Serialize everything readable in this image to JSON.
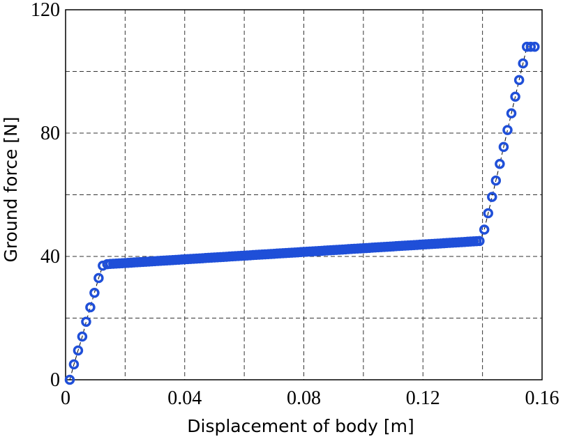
{
  "chart_data": {
    "type": "scatter",
    "title": "",
    "xlabel": "Displacement of body [m]",
    "ylabel": "Ground force [N]",
    "xlim": [
      0,
      0.16
    ],
    "ylim": [
      0,
      120
    ],
    "xticks": [
      0,
      0.04,
      0.08,
      0.12,
      0.16
    ],
    "xtick_labels": [
      "0",
      "0.04",
      "0.08",
      "0.12",
      "0.16"
    ],
    "yticks": [
      0,
      40,
      80,
      120
    ],
    "ytick_labels": [
      "0",
      "40",
      "80",
      "120"
    ],
    "grid": true,
    "marker_color": "#1f4fd8",
    "series": [
      {
        "marker": "open-circle",
        "connected": "dashed-line",
        "x": [
          0.0014,
          0.0028,
          0.0042,
          0.0056,
          0.0069,
          0.0083,
          0.0097,
          0.0111,
          0.0125,
          0.014,
          0.015,
          0.016,
          0.017,
          0.018,
          0.019,
          0.02,
          0.021,
          0.022,
          0.023,
          0.024,
          0.025,
          0.026,
          0.027,
          0.028,
          0.029,
          0.03,
          0.031,
          0.032,
          0.033,
          0.034,
          0.035,
          0.036,
          0.037,
          0.038,
          0.039,
          0.04,
          0.041,
          0.042,
          0.043,
          0.044,
          0.045,
          0.046,
          0.047,
          0.048,
          0.049,
          0.05,
          0.051,
          0.052,
          0.053,
          0.054,
          0.055,
          0.056,
          0.057,
          0.058,
          0.059,
          0.06,
          0.061,
          0.062,
          0.063,
          0.064,
          0.065,
          0.066,
          0.067,
          0.068,
          0.069,
          0.07,
          0.071,
          0.072,
          0.073,
          0.074,
          0.075,
          0.076,
          0.077,
          0.078,
          0.079,
          0.08,
          0.081,
          0.082,
          0.083,
          0.084,
          0.085,
          0.086,
          0.087,
          0.088,
          0.089,
          0.09,
          0.091,
          0.092,
          0.093,
          0.094,
          0.095,
          0.096,
          0.097,
          0.098,
          0.099,
          0.1,
          0.101,
          0.102,
          0.103,
          0.104,
          0.105,
          0.106,
          0.107,
          0.108,
          0.109,
          0.11,
          0.111,
          0.112,
          0.113,
          0.114,
          0.115,
          0.116,
          0.117,
          0.118,
          0.119,
          0.12,
          0.121,
          0.122,
          0.123,
          0.124,
          0.125,
          0.126,
          0.127,
          0.128,
          0.129,
          0.13,
          0.131,
          0.132,
          0.133,
          0.134,
          0.135,
          0.136,
          0.137,
          0.138,
          0.139,
          0.1406,
          0.1419,
          0.1432,
          0.1445,
          0.1458,
          0.1471,
          0.1484,
          0.1497,
          0.151,
          0.1523,
          0.1536,
          0.1549,
          0.1562,
          0.1575
        ],
        "y": [
          0.0,
          5.0,
          9.5,
          14.0,
          18.8,
          23.5,
          28.2,
          33.0,
          37.0,
          37.5,
          37.56,
          37.62,
          37.68,
          37.74,
          37.8,
          37.86,
          37.92,
          37.98,
          38.04,
          38.1,
          38.16,
          38.22,
          38.28,
          38.34,
          38.4,
          38.46,
          38.52,
          38.58,
          38.64,
          38.7,
          38.76,
          38.82,
          38.88,
          38.94,
          39.0,
          39.06,
          39.12,
          39.18,
          39.24,
          39.3,
          39.36,
          39.42,
          39.48,
          39.54,
          39.6,
          39.66,
          39.72,
          39.78,
          39.84,
          39.9,
          39.96,
          40.02,
          40.08,
          40.14,
          40.2,
          40.26,
          40.32,
          40.38,
          40.44,
          40.5,
          40.56,
          40.62,
          40.68,
          40.74,
          40.8,
          40.86,
          40.92,
          40.98,
          41.04,
          41.1,
          41.16,
          41.22,
          41.28,
          41.34,
          41.4,
          41.46,
          41.52,
          41.58,
          41.64,
          41.7,
          41.76,
          41.82,
          41.88,
          41.94,
          42.0,
          42.06,
          42.12,
          42.18,
          42.24,
          42.3,
          42.36,
          42.42,
          42.48,
          42.54,
          42.6,
          42.66,
          42.72,
          42.78,
          42.84,
          42.9,
          42.96,
          43.02,
          43.08,
          43.14,
          43.2,
          43.26,
          43.32,
          43.38,
          43.44,
          43.5,
          43.56,
          43.62,
          43.68,
          43.74,
          43.8,
          43.86,
          43.92,
          43.98,
          44.04,
          44.1,
          44.16,
          44.22,
          44.28,
          44.34,
          44.4,
          44.46,
          44.52,
          44.58,
          44.64,
          44.7,
          44.76,
          44.82,
          44.88,
          44.94,
          45.0,
          48.7,
          54.0,
          59.3,
          64.6,
          70.0,
          75.5,
          81.0,
          86.4,
          91.8,
          97.2,
          102.6,
          108.0,
          108.0,
          108.0
        ]
      }
    ]
  }
}
